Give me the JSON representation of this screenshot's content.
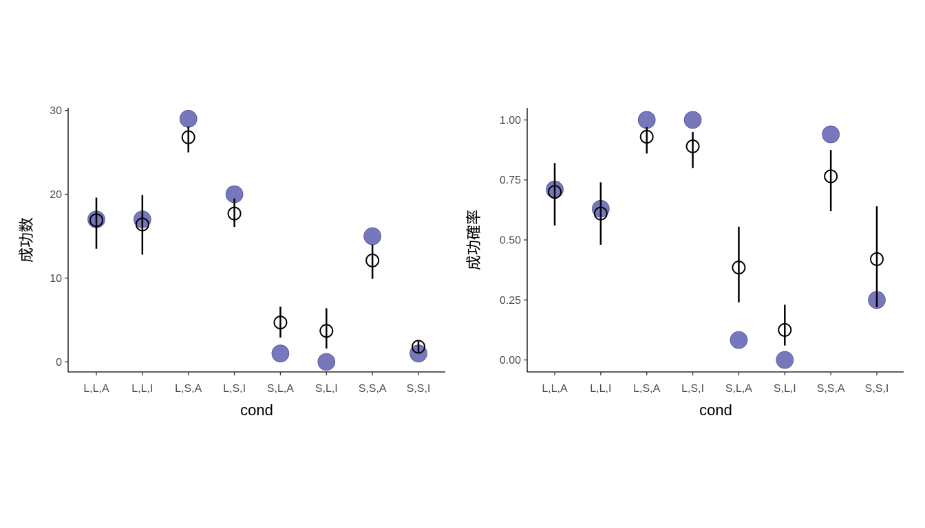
{
  "chart_data": [
    {
      "type": "scatter",
      "categories": [
        "L,L,A",
        "L,L,I",
        "L,S,A",
        "L,S,I",
        "S,L,A",
        "S,L,I",
        "S,S,A",
        "S,S,I"
      ],
      "xlabel": "cond",
      "ylabel": "成功数",
      "ylim": [
        -1.2,
        30.3
      ],
      "yticks": [
        0,
        10,
        20,
        30
      ],
      "ytick_labels": [
        "0",
        "10",
        "20",
        "30"
      ],
      "grid": false,
      "observed": [
        17,
        17,
        29,
        20,
        1,
        0,
        15,
        1
      ],
      "predicted": [
        16.9,
        16.4,
        26.8,
        17.7,
        4.7,
        3.7,
        12.1,
        1.8
      ],
      "pred_lower": [
        13.5,
        12.8,
        25.0,
        16.1,
        2.9,
        1.6,
        9.9,
        1.0
      ],
      "pred_upper": [
        19.6,
        19.9,
        28.1,
        19.5,
        6.6,
        6.4,
        14.0,
        2.6
      ],
      "colors": {
        "observed": "#7777bb",
        "predicted": "#000000"
      }
    },
    {
      "type": "scatter",
      "categories": [
        "L,L,A",
        "L,L,I",
        "L,S,A",
        "L,S,I",
        "S,L,A",
        "S,L,I",
        "S,S,A",
        "S,S,I"
      ],
      "xlabel": "cond",
      "ylabel": "成功確率",
      "ylim": [
        -0.05,
        1.05
      ],
      "yticks": [
        0,
        0.25,
        0.5,
        0.75,
        1.0
      ],
      "ytick_labels": [
        "0.00",
        "0.25",
        "0.50",
        "0.75",
        "1.00"
      ],
      "grid": false,
      "observed": [
        0.71,
        0.63,
        1.0,
        1.0,
        0.083,
        0.0,
        0.94,
        0.25
      ],
      "predicted": [
        0.7,
        0.61,
        0.93,
        0.89,
        0.385,
        0.125,
        0.765,
        0.42
      ],
      "pred_lower": [
        0.56,
        0.48,
        0.86,
        0.8,
        0.24,
        0.06,
        0.62,
        0.22
      ],
      "pred_upper": [
        0.82,
        0.74,
        0.97,
        0.95,
        0.555,
        0.23,
        0.875,
        0.64
      ],
      "colors": {
        "observed": "#7777bb",
        "predicted": "#000000"
      }
    }
  ]
}
